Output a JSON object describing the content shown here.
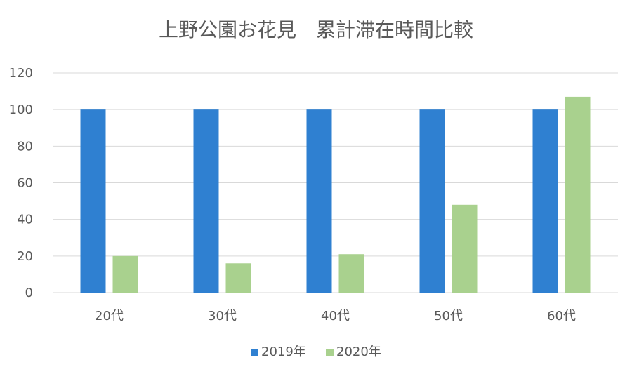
{
  "chart_data": {
    "type": "bar",
    "title": "上野公園お花見　累計滞在時間比較",
    "xlabel": "",
    "ylabel": "",
    "categories": [
      "20代",
      "30代",
      "40代",
      "50代",
      "60代"
    ],
    "series": [
      {
        "name": "2019年",
        "color": "#2f80d1",
        "values": [
          100,
          100,
          100,
          100,
          100
        ]
      },
      {
        "name": "2020年",
        "color": "#a9d18e",
        "values": [
          20,
          16,
          21,
          48,
          107
        ]
      }
    ],
    "ylim": [
      0,
      120
    ],
    "yticks": [
      0,
      20,
      40,
      60,
      80,
      100,
      120
    ],
    "grid": true,
    "legend_position": "bottom"
  }
}
